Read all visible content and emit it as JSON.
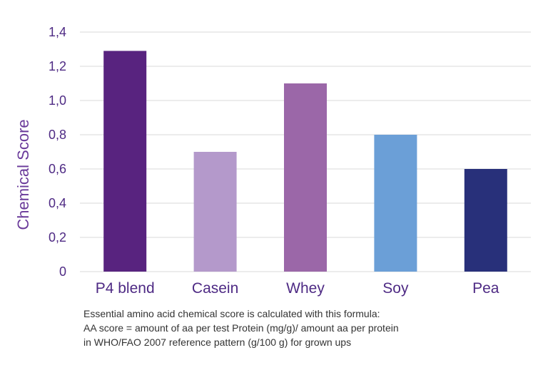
{
  "chart_data": {
    "type": "bar",
    "ylabel": "Chemical Score",
    "xlabel": "",
    "categories": [
      "P4 blend",
      "Casein",
      "Whey",
      "Soy",
      "Pea"
    ],
    "values": [
      1.29,
      0.7,
      1.1,
      0.8,
      0.6
    ],
    "colors": [
      "#58237f",
      "#b499cb",
      "#9b67a8",
      "#6b9fd7",
      "#28307a"
    ],
    "ylim": [
      0,
      1.4
    ],
    "yticks": [
      {
        "value": 0,
        "label": "0"
      },
      {
        "value": 0.2,
        "label": "0,2"
      },
      {
        "value": 0.4,
        "label": "0,4"
      },
      {
        "value": 0.6,
        "label": "0,6"
      },
      {
        "value": 0.8,
        "label": "0,8"
      },
      {
        "value": 1.0,
        "label": "1,0"
      },
      {
        "value": 1.2,
        "label": "1,2"
      },
      {
        "value": 1.4,
        "label": "1,4"
      }
    ],
    "grid": true
  },
  "footnote": {
    "line1": "Essential amino acid chemical score is calculated with this formula:",
    "line2": "AA score = amount of aa per test Protein (mg/g)/ amount aa per protein",
    "line3": "in WHO/FAO 2007 reference pattern (g/100 g) for grown ups"
  }
}
